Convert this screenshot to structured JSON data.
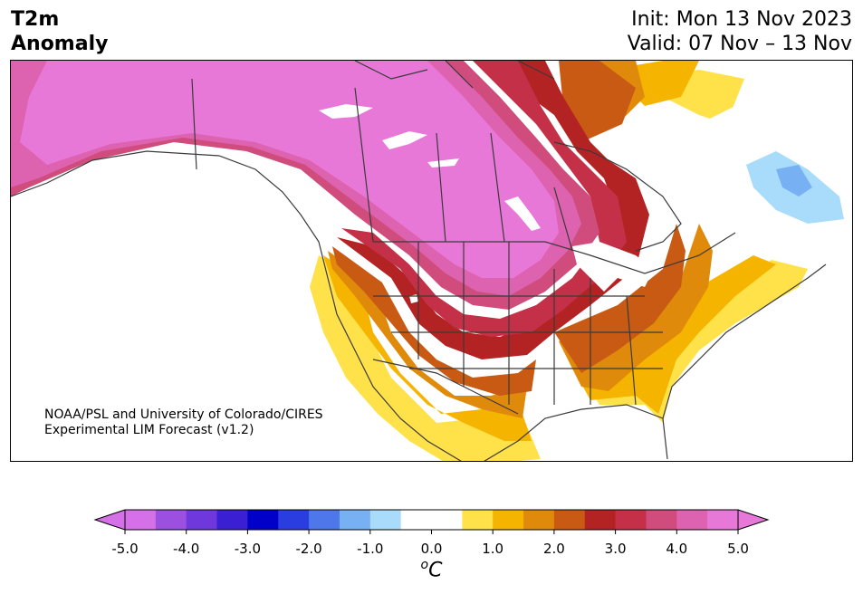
{
  "header": {
    "title_line1": "T2m",
    "title_line2": "Anomaly",
    "init": "Init: Mon 13 Nov 2023",
    "valid": "Valid: 07 Nov – 13 Nov"
  },
  "credit": {
    "line1": "NOAA/PSL and University of Colorado/CIRES",
    "line2": "Experimental LIM Forecast (v1.2)"
  },
  "colorbar": {
    "unit_base": "C",
    "unit_sup": "o",
    "ticks": [
      "-5.0",
      "-4.0",
      "-3.0",
      "-2.0",
      "-1.0",
      "0.0",
      "1.0",
      "2.0",
      "3.0",
      "4.0",
      "5.0"
    ],
    "colors": [
      "#d670e8",
      "#9c50e0",
      "#6e38dc",
      "#3b1fd2",
      "#0000c8",
      "#2a3ee0",
      "#4e78ea",
      "#78b0f4",
      "#a9dcfb",
      "#ffffff",
      "#ffffff",
      "#ffe14a",
      "#f5b400",
      "#e08a0c",
      "#c85a14",
      "#b42324",
      "#c43048",
      "#cf4c7c",
      "#dd62b0",
      "#e878d8"
    ],
    "under_color": "#d670e8",
    "over_color": "#e878d8"
  },
  "map": {
    "anomaly_colors": {
      "c5": "#e878d8",
      "c45": "#dd62b0",
      "c4": "#cf4c7c",
      "c35": "#c43048",
      "c3": "#b42324",
      "c25": "#c85a14",
      "c2": "#e08a0c",
      "c15": "#f5b400",
      "c1": "#ffe14a",
      "cn1": "#a9dcfb",
      "cn15": "#78b0f4"
    }
  }
}
